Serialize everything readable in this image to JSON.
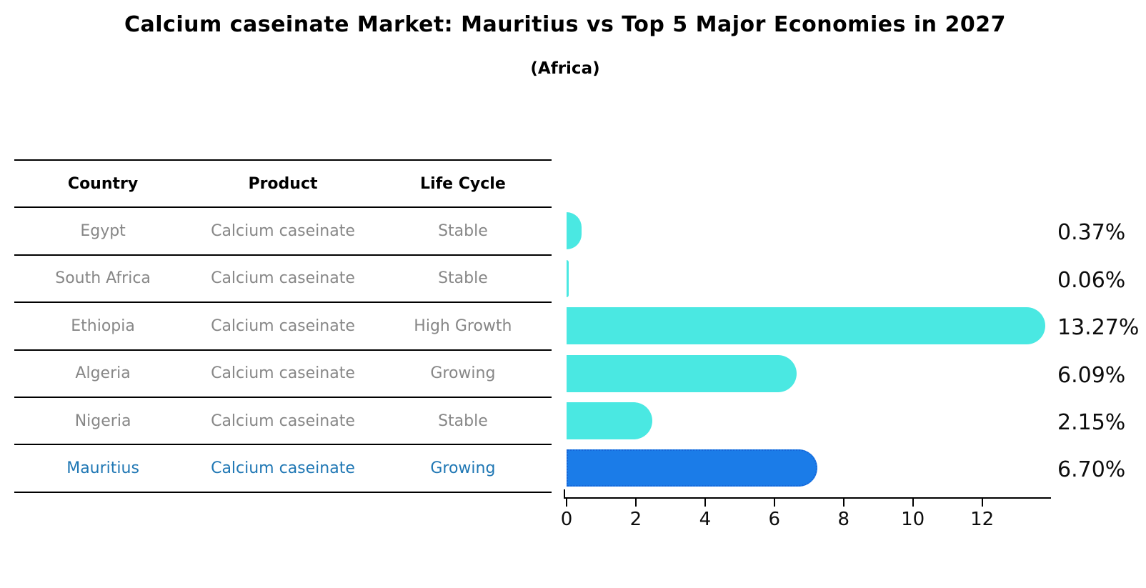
{
  "title": "Calcium caseinate Market: Mauritius vs Top 5 Major Economies in 2027",
  "subtitle": "(Africa)",
  "table": {
    "headers": [
      "Country",
      "Product",
      "Life Cycle"
    ],
    "rows": [
      {
        "country": "Egypt",
        "product": "Calcium caseinate",
        "life_cycle": "Stable",
        "highlight": false
      },
      {
        "country": "South Africa",
        "product": "Calcium caseinate",
        "life_cycle": "Stable",
        "highlight": false
      },
      {
        "country": "Ethiopia",
        "product": "Calcium caseinate",
        "life_cycle": "High Growth",
        "highlight": false
      },
      {
        "country": "Algeria",
        "product": "Calcium caseinate",
        "life_cycle": "Growing",
        "highlight": false
      },
      {
        "country": "Nigeria",
        "product": "Calcium caseinate",
        "life_cycle": "Stable",
        "highlight": false
      },
      {
        "country": "Mauritius",
        "product": "Calcium caseinate",
        "life_cycle": "Growing",
        "highlight": true
      }
    ]
  },
  "chart_data": {
    "type": "bar",
    "orientation": "horizontal",
    "title": "Calcium caseinate Market: Mauritius vs Top 5 Major Economies in 2027",
    "subtitle": "(Africa)",
    "categories": [
      "Egypt",
      "South Africa",
      "Ethiopia",
      "Algeria",
      "Nigeria",
      "Mauritius"
    ],
    "values": [
      0.37,
      0.06,
      13.27,
      6.09,
      2.15,
      6.7
    ],
    "value_labels": [
      "0.37%",
      "0.06%",
      "13.27%",
      "6.09%",
      "2.15%",
      "6.70%"
    ],
    "x_ticks": [
      0,
      2,
      4,
      6,
      8,
      10,
      12
    ],
    "xlim": [
      0,
      14.05
    ],
    "grid": false,
    "legend": "none",
    "highlight_index": 5,
    "colors": {
      "bar": "#4AE8E2",
      "highlight_bar": "#1B7CE8",
      "highlight_bar_border": "#1565D8",
      "highlight_text": "#1F77B4",
      "muted_text": "#878787",
      "axis": "#000000"
    }
  }
}
